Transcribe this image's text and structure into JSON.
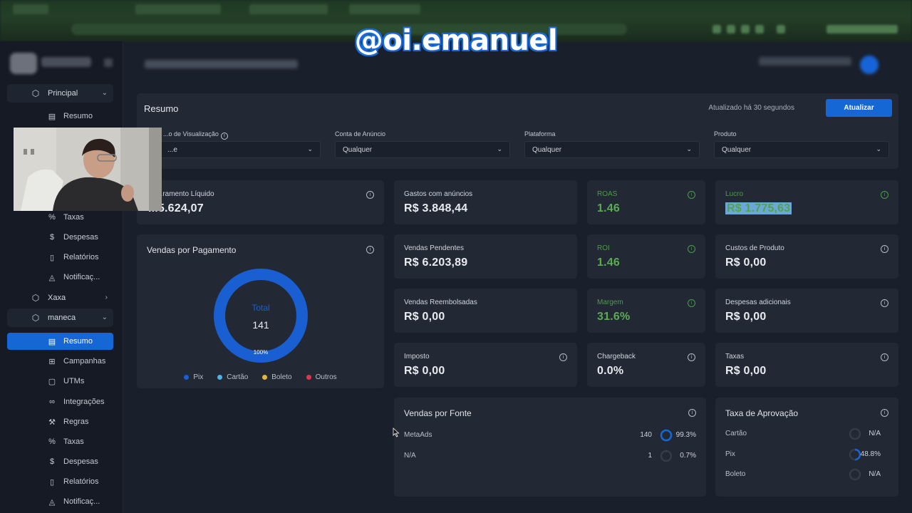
{
  "watermark": "@oi.emanuel",
  "sidebar": {
    "groups": [
      {
        "label": "Principal",
        "icon": "box-icon"
      },
      {
        "label": "Xaxa",
        "icon": "box-icon"
      },
      {
        "label": "maneca",
        "icon": "box-icon"
      }
    ],
    "principal_items": [
      {
        "label": "Resumo",
        "icon": "layout-icon"
      },
      {
        "label": "Taxas",
        "icon": "percent-icon"
      },
      {
        "label": "Despesas",
        "icon": "dollar-icon"
      },
      {
        "label": "Relatórios",
        "icon": "file-icon"
      },
      {
        "label": "Notificaç...",
        "icon": "bell-icon"
      }
    ],
    "maneca_items": [
      {
        "label": "Resumo",
        "icon": "layout-icon",
        "active": true
      },
      {
        "label": "Campanhas",
        "icon": "campaign-icon"
      },
      {
        "label": "UTMs",
        "icon": "clipboard-icon"
      },
      {
        "label": "Integrações",
        "icon": "link-icon"
      },
      {
        "label": "Regras",
        "icon": "wrench-icon"
      },
      {
        "label": "Taxas",
        "icon": "percent-icon"
      },
      {
        "label": "Despesas",
        "icon": "dollar-icon"
      },
      {
        "label": "Relatórios",
        "icon": "file-icon"
      },
      {
        "label": "Notificaç...",
        "icon": "bell-icon"
      }
    ]
  },
  "resumo": {
    "title": "Resumo",
    "updated": "Atualizado há 30 segundos",
    "update_button": "Atualizar",
    "filters": [
      {
        "label": "...o de Visualização",
        "value": "...e"
      },
      {
        "label": "Conta de Anúncio",
        "value": "Qualquer"
      },
      {
        "label": "Plataforma",
        "value": "Qualquer"
      },
      {
        "label": "Produto",
        "value": "Qualquer"
      }
    ]
  },
  "metrics": {
    "faturamento": {
      "label": "...ramento Líquido",
      "value": "...5.624,07"
    },
    "gastos": {
      "label": "Gastos com anúncios",
      "value": "R$ 3.848,44"
    },
    "roas": {
      "label": "ROAS",
      "value": "1.46"
    },
    "lucro": {
      "label": "Lucro",
      "value": "R$ 1.775,63"
    },
    "pendentes": {
      "label": "Vendas Pendentes",
      "value": "R$ 6.203,89"
    },
    "roi": {
      "label": "ROI",
      "value": "1.46"
    },
    "custos": {
      "label": "Custos de Produto",
      "value": "R$ 0,00"
    },
    "reembolsadas": {
      "label": "Vendas Reembolsadas",
      "value": "R$ 0,00"
    },
    "margem": {
      "label": "Margem",
      "value": "31.6%"
    },
    "despesas": {
      "label": "Despesas adicionais",
      "value": "R$ 0,00"
    },
    "imposto": {
      "label": "Imposto",
      "value": "R$ 0,00"
    },
    "chargeback": {
      "label": "Chargeback",
      "value": "0.0%"
    },
    "taxas": {
      "label": "Taxas",
      "value": "R$ 0,00"
    }
  },
  "vendas_pagamento": {
    "title": "Vendas por Pagamento",
    "total_label": "Total",
    "total_value": "141",
    "percent_label": "100%",
    "legend": [
      {
        "label": "Pix",
        "color": "#1a5fd1"
      },
      {
        "label": "Cartão",
        "color": "#4db3e6"
      },
      {
        "label": "Boleto",
        "color": "#e2b53c"
      },
      {
        "label": "Outros",
        "color": "#d9394c"
      }
    ]
  },
  "vendas_fonte": {
    "title": "Vendas por Fonte",
    "rows": [
      {
        "name": "MetaAds",
        "count": "140",
        "percent": "99.3%",
        "fraction": 0.993
      },
      {
        "name": "N/A",
        "count": "1",
        "percent": "0.7%",
        "fraction": 0.007
      }
    ]
  },
  "taxa_aprovacao": {
    "title": "Taxa de Aprovação",
    "rows": [
      {
        "name": "Cartão",
        "percent": "N/A",
        "fraction": 0
      },
      {
        "name": "Pix",
        "percent": "48.8%",
        "fraction": 0.488
      },
      {
        "name": "Boleto",
        "percent": "N/A",
        "fraction": 0
      }
    ]
  },
  "colors": {
    "accent": "#1667d6",
    "positive": "#58ad4f",
    "card": "#222935",
    "background": "#1a202b"
  }
}
